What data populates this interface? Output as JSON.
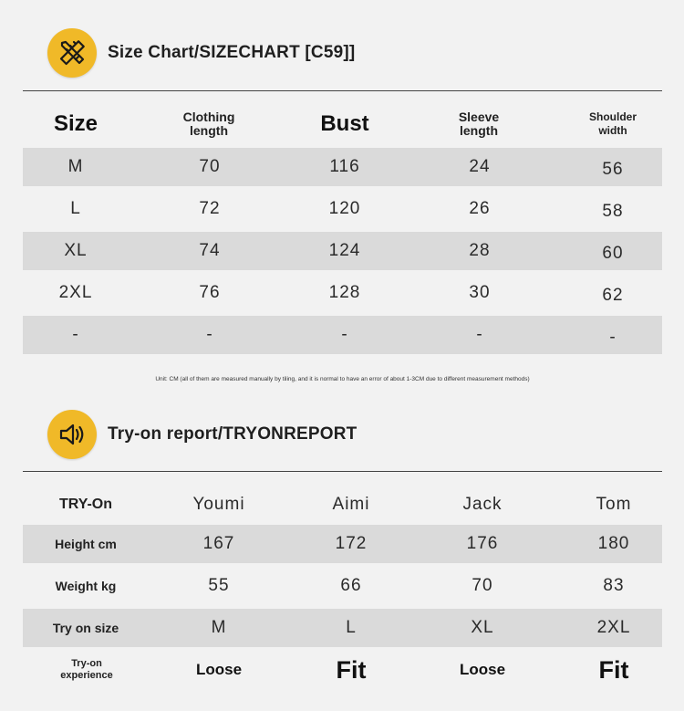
{
  "size_chart": {
    "title": "Size Chart/SIZECHART [C59]]",
    "icon": "pencil-ruler-icon",
    "headers": [
      "Size",
      "Clothing length",
      "Bust",
      "Sleeve length",
      "Shoulder width"
    ],
    "rows": [
      [
        "M",
        "70",
        "116",
        "24",
        "56"
      ],
      [
        "L",
        "72",
        "120",
        "26",
        "58"
      ],
      [
        "XL",
        "74",
        "124",
        "28",
        "60"
      ],
      [
        "2XL",
        "76",
        "128",
        "30",
        "62"
      ],
      [
        "-",
        "-",
        "-",
        "-",
        "-"
      ]
    ],
    "note": "Unit: CM (all of them are measured manually by tiling, and it is normal to have an error of about 1-3CM due to different measurement methods)"
  },
  "tryon_report": {
    "title": "Try-on report/TRYONREPORT",
    "icon": "speaker-icon",
    "headers": [
      "TRY-On",
      "Youmi",
      "Aimi",
      "Jack",
      "Tom"
    ],
    "rows": [
      [
        "Height cm",
        "167",
        "172",
        "176",
        "180"
      ],
      [
        "Weight kg",
        "55",
        "66",
        "70",
        "83"
      ],
      [
        "Try on size",
        "M",
        "L",
        "XL",
        "2XL"
      ],
      [
        "Try-on experience",
        "Loose",
        "Fit",
        "Loose",
        "Fit"
      ]
    ]
  },
  "colors": {
    "accent": "#f0b928",
    "row_shade": "#dadada",
    "background": "#f2f2f2"
  }
}
